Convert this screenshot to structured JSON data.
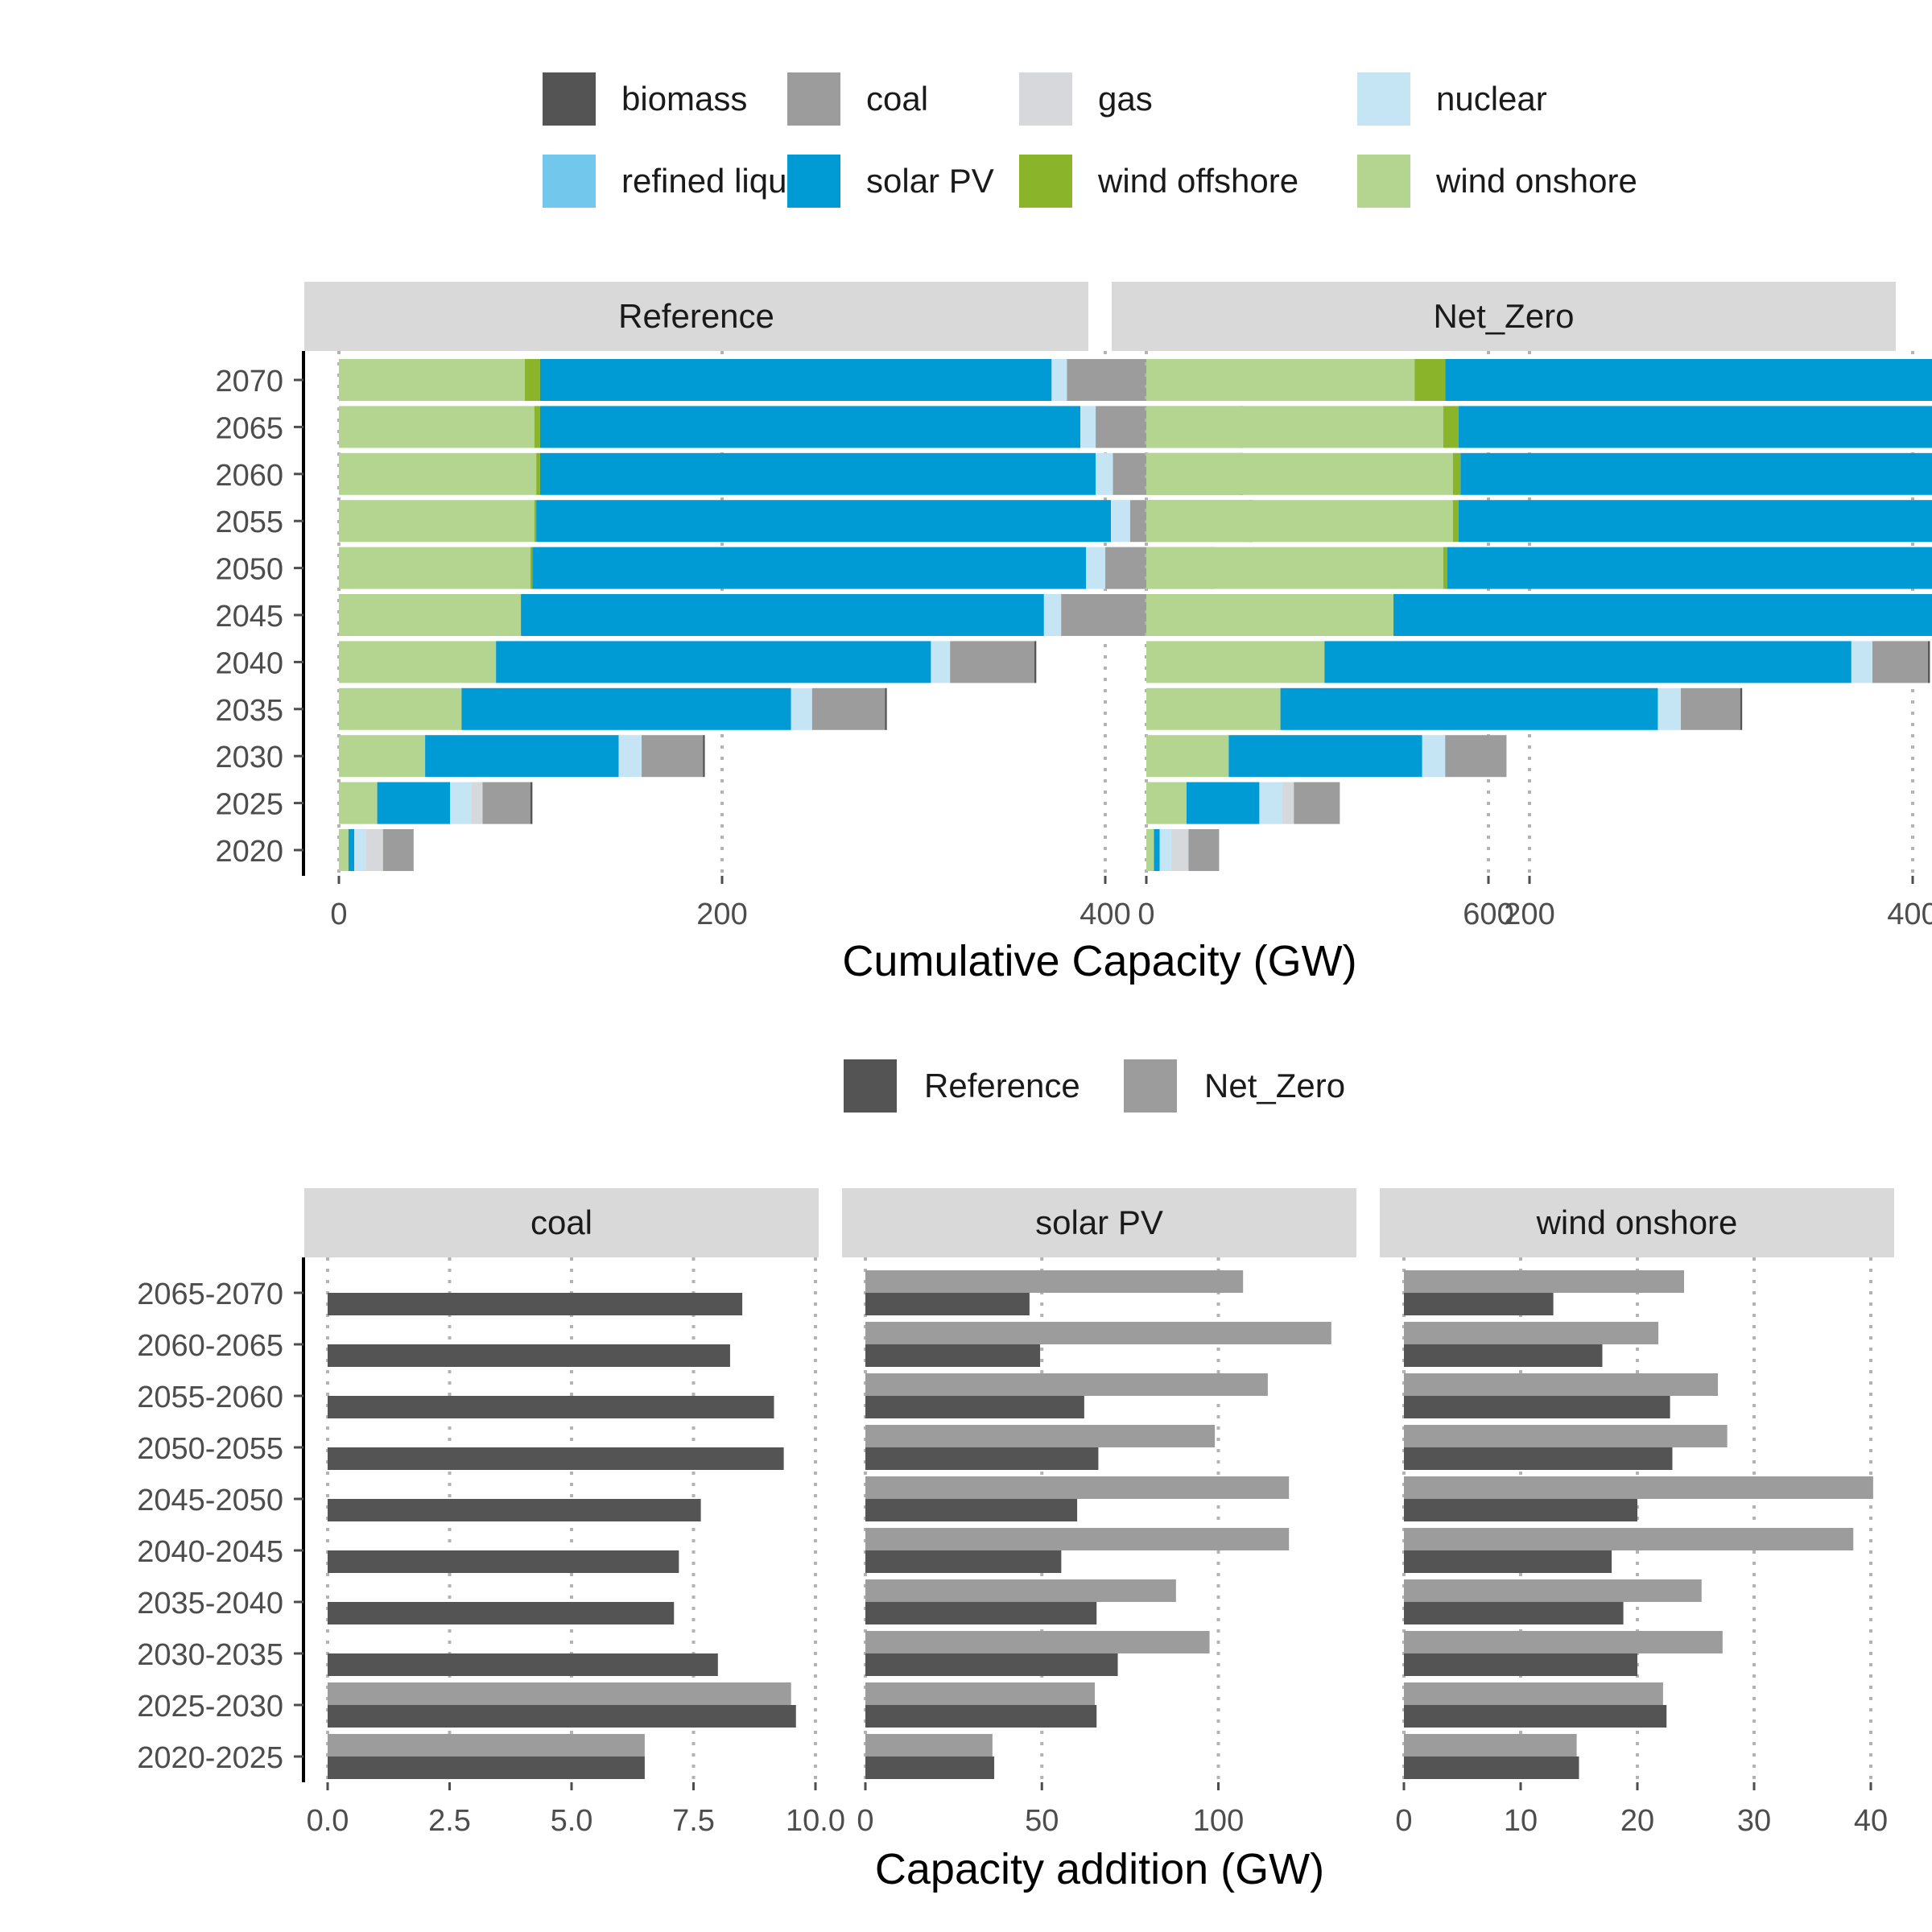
{
  "colors": {
    "biomass": "#545454",
    "coal": "#9c9c9c",
    "gas": "#d7d8dc",
    "nuclear": "#c5e4f4",
    "refined liquids": "#72c8ec",
    "solar PV": "#009ad5",
    "wind offshore": "#8ab52a",
    "wind onshore": "#b3d58f",
    "Reference": "#545454",
    "Net_Zero": "#9c9c9c",
    "strip_bg": "#d9d9d9",
    "grid": "#b3b3b3",
    "axis": "#000000"
  },
  "chart_data": [
    {
      "type": "bar",
      "orientation": "horizontal",
      "stacked": true,
      "panels": [
        "Reference",
        "Net_Zero"
      ],
      "legend": {
        "position": "top",
        "entries": [
          "biomass",
          "coal",
          "gas",
          "nuclear",
          "refined liquids",
          "solar PV",
          "wind offshore",
          "wind onshore"
        ]
      },
      "stack_order": [
        "wind onshore",
        "wind offshore",
        "solar PV",
        "refined liquids",
        "nuclear",
        "gas",
        "coal",
        "biomass"
      ],
      "categories": [
        "2020",
        "2025",
        "2030",
        "2035",
        "2040",
        "2045",
        "2050",
        "2055",
        "2060",
        "2065",
        "2070"
      ],
      "xlabel": "Cumulative Capacity (GW)",
      "xlim": [
        0,
        760
      ],
      "xticks": [
        "0",
        "200",
        "400",
        "600"
      ],
      "xtick_values": [
        0,
        200,
        400,
        600
      ],
      "grid": "vertical dotted",
      "series": {
        "Reference": [
          {
            "name": "wind onshore",
            "values": [
              5,
              20,
              45,
              64,
              82,
              95,
              100,
              102,
              103,
              102,
              97
            ]
          },
          {
            "name": "wind offshore",
            "values": [
              0,
              0,
              0,
              0,
              0,
              0,
              1,
              1,
              2,
              3,
              8
            ]
          },
          {
            "name": "solar PV",
            "values": [
              3,
              38,
              101,
              172,
              227,
              273,
              289,
              300,
              290,
              282,
              267
            ]
          },
          {
            "name": "refined liquids",
            "values": [
              0,
              0,
              0,
              0,
              0,
              0,
              0,
              0,
              0,
              0,
              0
            ]
          },
          {
            "name": "nuclear",
            "values": [
              6,
              11,
              12,
              11,
              10,
              9,
              10,
              10,
              9,
              8,
              8
            ]
          },
          {
            "name": "gas",
            "values": [
              9,
              6,
              0,
              0,
              0,
              0,
              0,
              0,
              0,
              0,
              0
            ]
          },
          {
            "name": "coal",
            "values": [
              16,
              25,
              32,
              38,
              44,
              48,
              55,
              62,
              66,
              75,
              76
            ]
          },
          {
            "name": "biomass",
            "values": [
              0,
              1,
              1,
              1,
              1,
              1,
              2,
              2,
              2,
              2,
              2
            ]
          }
        ],
        "Net_Zero": [
          {
            "name": "wind onshore",
            "values": [
              4,
              21,
              43,
              70,
              93,
              129,
              155,
              160,
              160,
              155,
              140
            ]
          },
          {
            "name": "wind offshore",
            "values": [
              0,
              0,
              0,
              0,
              0,
              0,
              2,
              3,
              4,
              8,
              16
            ]
          },
          {
            "name": "solar PV",
            "values": [
              3,
              38,
              101,
              197,
              275,
              382,
              453,
              498,
              509,
              564,
              543
            ]
          },
          {
            "name": "refined liquids",
            "values": [
              0,
              0,
              0,
              0,
              0,
              0,
              0,
              0,
              0,
              0,
              0
            ]
          },
          {
            "name": "nuclear",
            "values": [
              6,
              12,
              12,
              12,
              11,
              15,
              16,
              13,
              15,
              20,
              16
            ]
          },
          {
            "name": "gas",
            "values": [
              9,
              6,
              0,
              0,
              0,
              0,
              0,
              0,
              0,
              0,
              0
            ]
          },
          {
            "name": "coal",
            "values": [
              16,
              24,
              32,
              31,
              29,
              11,
              0,
              0,
              0,
              0,
              0
            ]
          },
          {
            "name": "biomass",
            "values": [
              0,
              0,
              0,
              1,
              1,
              0,
              0,
              0,
              0,
              0,
              0
            ]
          }
        ]
      }
    },
    {
      "type": "bar",
      "orientation": "horizontal",
      "grouped": true,
      "panels": [
        "coal",
        "solar PV",
        "wind onshore"
      ],
      "legend": {
        "position": "top",
        "entries": [
          "Reference",
          "Net_Zero"
        ]
      },
      "categories": [
        "2020-2025",
        "2025-2030",
        "2030-2035",
        "2035-2040",
        "2040-2045",
        "2045-2050",
        "2050-2055",
        "2055-2060",
        "2060-2065",
        "2065-2070"
      ],
      "xlabel": "Capacity addition (GW)",
      "grid": "vertical dotted",
      "facets": [
        {
          "name": "coal",
          "xlim": [
            0,
            10
          ],
          "xticks": [
            "0.0",
            "2.5",
            "5.0",
            "7.5",
            "10.0"
          ],
          "xtick_values": [
            0,
            2.5,
            5,
            7.5,
            10
          ],
          "series": [
            {
              "name": "Reference",
              "values": [
                6.5,
                9.6,
                8.0,
                7.1,
                7.2,
                7.65,
                9.35,
                9.15,
                8.25,
                8.5
              ]
            },
            {
              "name": "Net_Zero",
              "values": [
                6.5,
                9.5,
                0,
                0,
                0,
                0,
                0,
                0,
                0,
                0
              ]
            }
          ]
        },
        {
          "name": "solar PV",
          "xlim": [
            0,
            135
          ],
          "xticks": [
            "0",
            "50",
            "100"
          ],
          "xtick_values": [
            0,
            50,
            100
          ],
          "series": [
            {
              "name": "Reference",
              "values": [
                36.5,
                65.5,
                71.5,
                65.5,
                55.5,
                60,
                66,
                62,
                49.5,
                46.5
              ]
            },
            {
              "name": "Net_Zero",
              "values": [
                36,
                65,
                97.5,
                88,
                120,
                120,
                99,
                114,
                132,
                107
              ]
            }
          ]
        },
        {
          "name": "wind onshore",
          "xlim": [
            0,
            41
          ],
          "xticks": [
            "0",
            "10",
            "20",
            "30",
            "40"
          ],
          "xtick_values": [
            0,
            10,
            20,
            30,
            40
          ],
          "series": [
            {
              "name": "Reference",
              "values": [
                15,
                22.5,
                20,
                18.8,
                17.8,
                20,
                23,
                22.8,
                17,
                12.8
              ]
            },
            {
              "name": "Net_Zero",
              "values": [
                14.8,
                22.2,
                27.3,
                25.5,
                38.5,
                40.2,
                27.7,
                26.9,
                21.8,
                24
              ]
            }
          ]
        }
      ]
    }
  ]
}
